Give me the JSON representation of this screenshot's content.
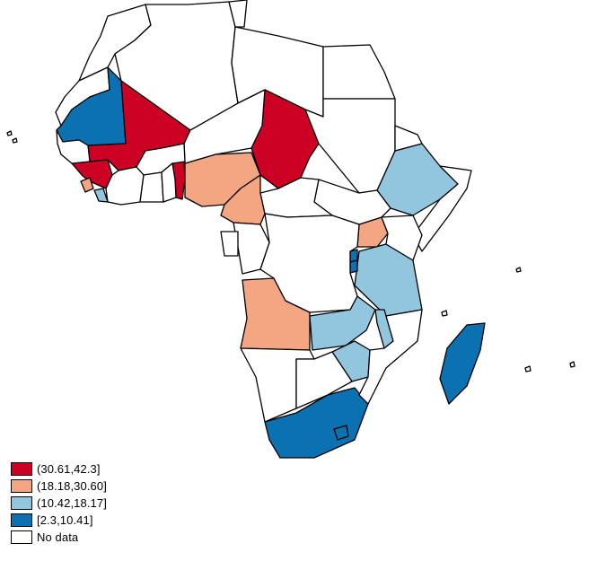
{
  "map": {
    "title": "",
    "colors": {
      "class1": "#cc0123",
      "class2": "#f4a582",
      "class3": "#92c5de",
      "class4": "#0b71b0",
      "nodata": "#ffffff",
      "border": "#000000"
    }
  },
  "legend": {
    "items": [
      {
        "label": "(30.61,42.3]",
        "color": "#cc0123"
      },
      {
        "label": "(18.18,30.60]",
        "color": "#f4a582"
      },
      {
        "label": "(10.42,18.17]",
        "color": "#92c5de"
      },
      {
        "label": "[2.3,10.41]",
        "color": "#0b71b0"
      },
      {
        "label": "No data",
        "color": "#ffffff"
      }
    ]
  }
}
